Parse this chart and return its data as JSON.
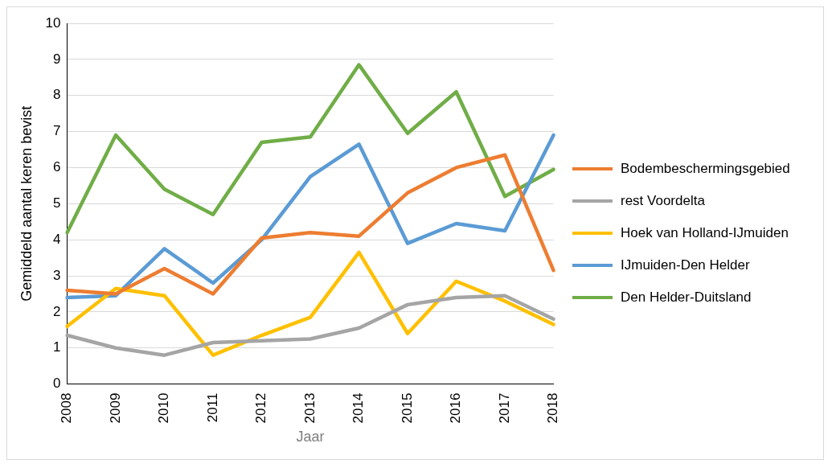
{
  "chart_data": {
    "type": "line",
    "xlabel": "Jaar",
    "ylabel": "Gemiddeld aantal keren bevist",
    "categories": [
      "2008",
      "2009",
      "2010",
      "2011",
      "2012",
      "2013",
      "2014",
      "2015",
      "2016",
      "2017",
      "2018"
    ],
    "series": [
      {
        "name": "Bodembeschermingsgebied",
        "color": "#ed7d31",
        "values": [
          2.6,
          2.5,
          3.2,
          2.5,
          4.05,
          4.2,
          4.1,
          5.3,
          6.0,
          6.35,
          3.15
        ]
      },
      {
        "name": "rest Voordelta",
        "color": "#a5a5a5",
        "values": [
          1.35,
          1.0,
          0.8,
          1.15,
          1.2,
          1.25,
          1.55,
          2.2,
          2.4,
          2.45,
          1.8
        ]
      },
      {
        "name": "Hoek van Holland-IJmuiden",
        "color": "#ffc000",
        "values": [
          1.6,
          2.65,
          2.45,
          0.8,
          1.35,
          1.85,
          3.65,
          1.4,
          2.85,
          2.3,
          1.65
        ]
      },
      {
        "name": "IJmuiden-Den Helder",
        "color": "#5b9bd5",
        "values": [
          2.4,
          2.45,
          3.75,
          2.8,
          4.0,
          5.75,
          6.65,
          3.9,
          4.45,
          4.25,
          6.9
        ]
      },
      {
        "name": "Den Helder-Duitsland",
        "color": "#70ad47",
        "values": [
          4.2,
          6.9,
          5.4,
          4.7,
          6.7,
          6.85,
          8.85,
          6.95,
          8.1,
          5.2,
          5.95
        ]
      }
    ],
    "ylim": [
      0,
      10
    ],
    "yticks": [
      0,
      1,
      2,
      3,
      4,
      5,
      6,
      7,
      8,
      9,
      10
    ],
    "grid": "y",
    "legend": "right",
    "marker": "none",
    "line_style": "solid"
  }
}
